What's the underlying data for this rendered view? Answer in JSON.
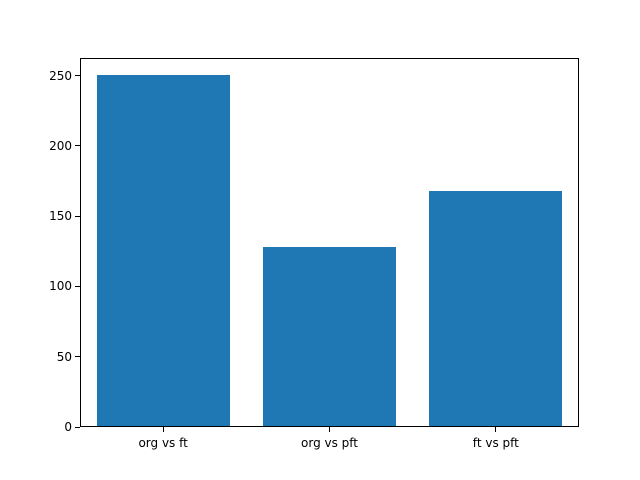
{
  "chart_data": {
    "type": "bar",
    "categories": [
      "org vs ft",
      "org vs pft",
      "ft vs pft"
    ],
    "values": [
      250,
      127,
      167
    ],
    "title": "",
    "xlabel": "",
    "ylabel": "",
    "ylim": [
      0,
      262.5
    ],
    "yticks": [
      0,
      50,
      100,
      150,
      200,
      250
    ],
    "grid": false,
    "legend": "none",
    "bar_color": "#1f77b4",
    "bar_width_fraction": 0.8
  }
}
